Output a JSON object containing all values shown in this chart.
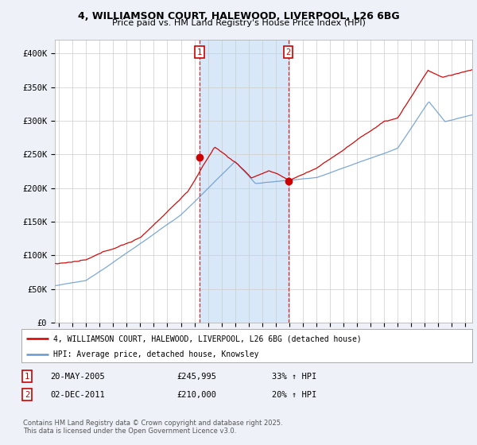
{
  "title_line1": "4, WILLIAMSON COURT, HALEWOOD, LIVERPOOL, L26 6BG",
  "title_line2": "Price paid vs. HM Land Registry's House Price Index (HPI)",
  "ylim": [
    0,
    420000
  ],
  "yticks": [
    0,
    50000,
    100000,
    150000,
    200000,
    250000,
    300000,
    350000,
    400000
  ],
  "ytick_labels": [
    "£0",
    "£50K",
    "£100K",
    "£150K",
    "£200K",
    "£250K",
    "£300K",
    "£350K",
    "£400K"
  ],
  "xlim_start": 1994.7,
  "xlim_end": 2025.5,
  "xticks": [
    1995,
    1996,
    1997,
    1998,
    1999,
    2000,
    2001,
    2002,
    2003,
    2004,
    2005,
    2006,
    2007,
    2008,
    2009,
    2010,
    2011,
    2012,
    2013,
    2014,
    2015,
    2016,
    2017,
    2018,
    2019,
    2020,
    2021,
    2022,
    2023,
    2024,
    2025
  ],
  "red_color": "#cc0000",
  "blue_color": "#6699cc",
  "shade_color": "#d8e8f8",
  "marker1_x": 2005.38,
  "marker1_y": 245995,
  "marker2_x": 2011.92,
  "marker2_y": 210000,
  "legend_red": "4, WILLIAMSON COURT, HALEWOOD, LIVERPOOL, L26 6BG (detached house)",
  "legend_blue": "HPI: Average price, detached house, Knowsley",
  "table_row1": [
    "1",
    "20-MAY-2005",
    "£245,995",
    "33% ↑ HPI"
  ],
  "table_row2": [
    "2",
    "02-DEC-2011",
    "£210,000",
    "20% ↑ HPI"
  ],
  "footer": "Contains HM Land Registry data © Crown copyright and database right 2025.\nThis data is licensed under the Open Government Licence v3.0.",
  "background_color": "#eef2f8",
  "plot_bg_color": "#ffffff",
  "grid_color": "#cccccc"
}
